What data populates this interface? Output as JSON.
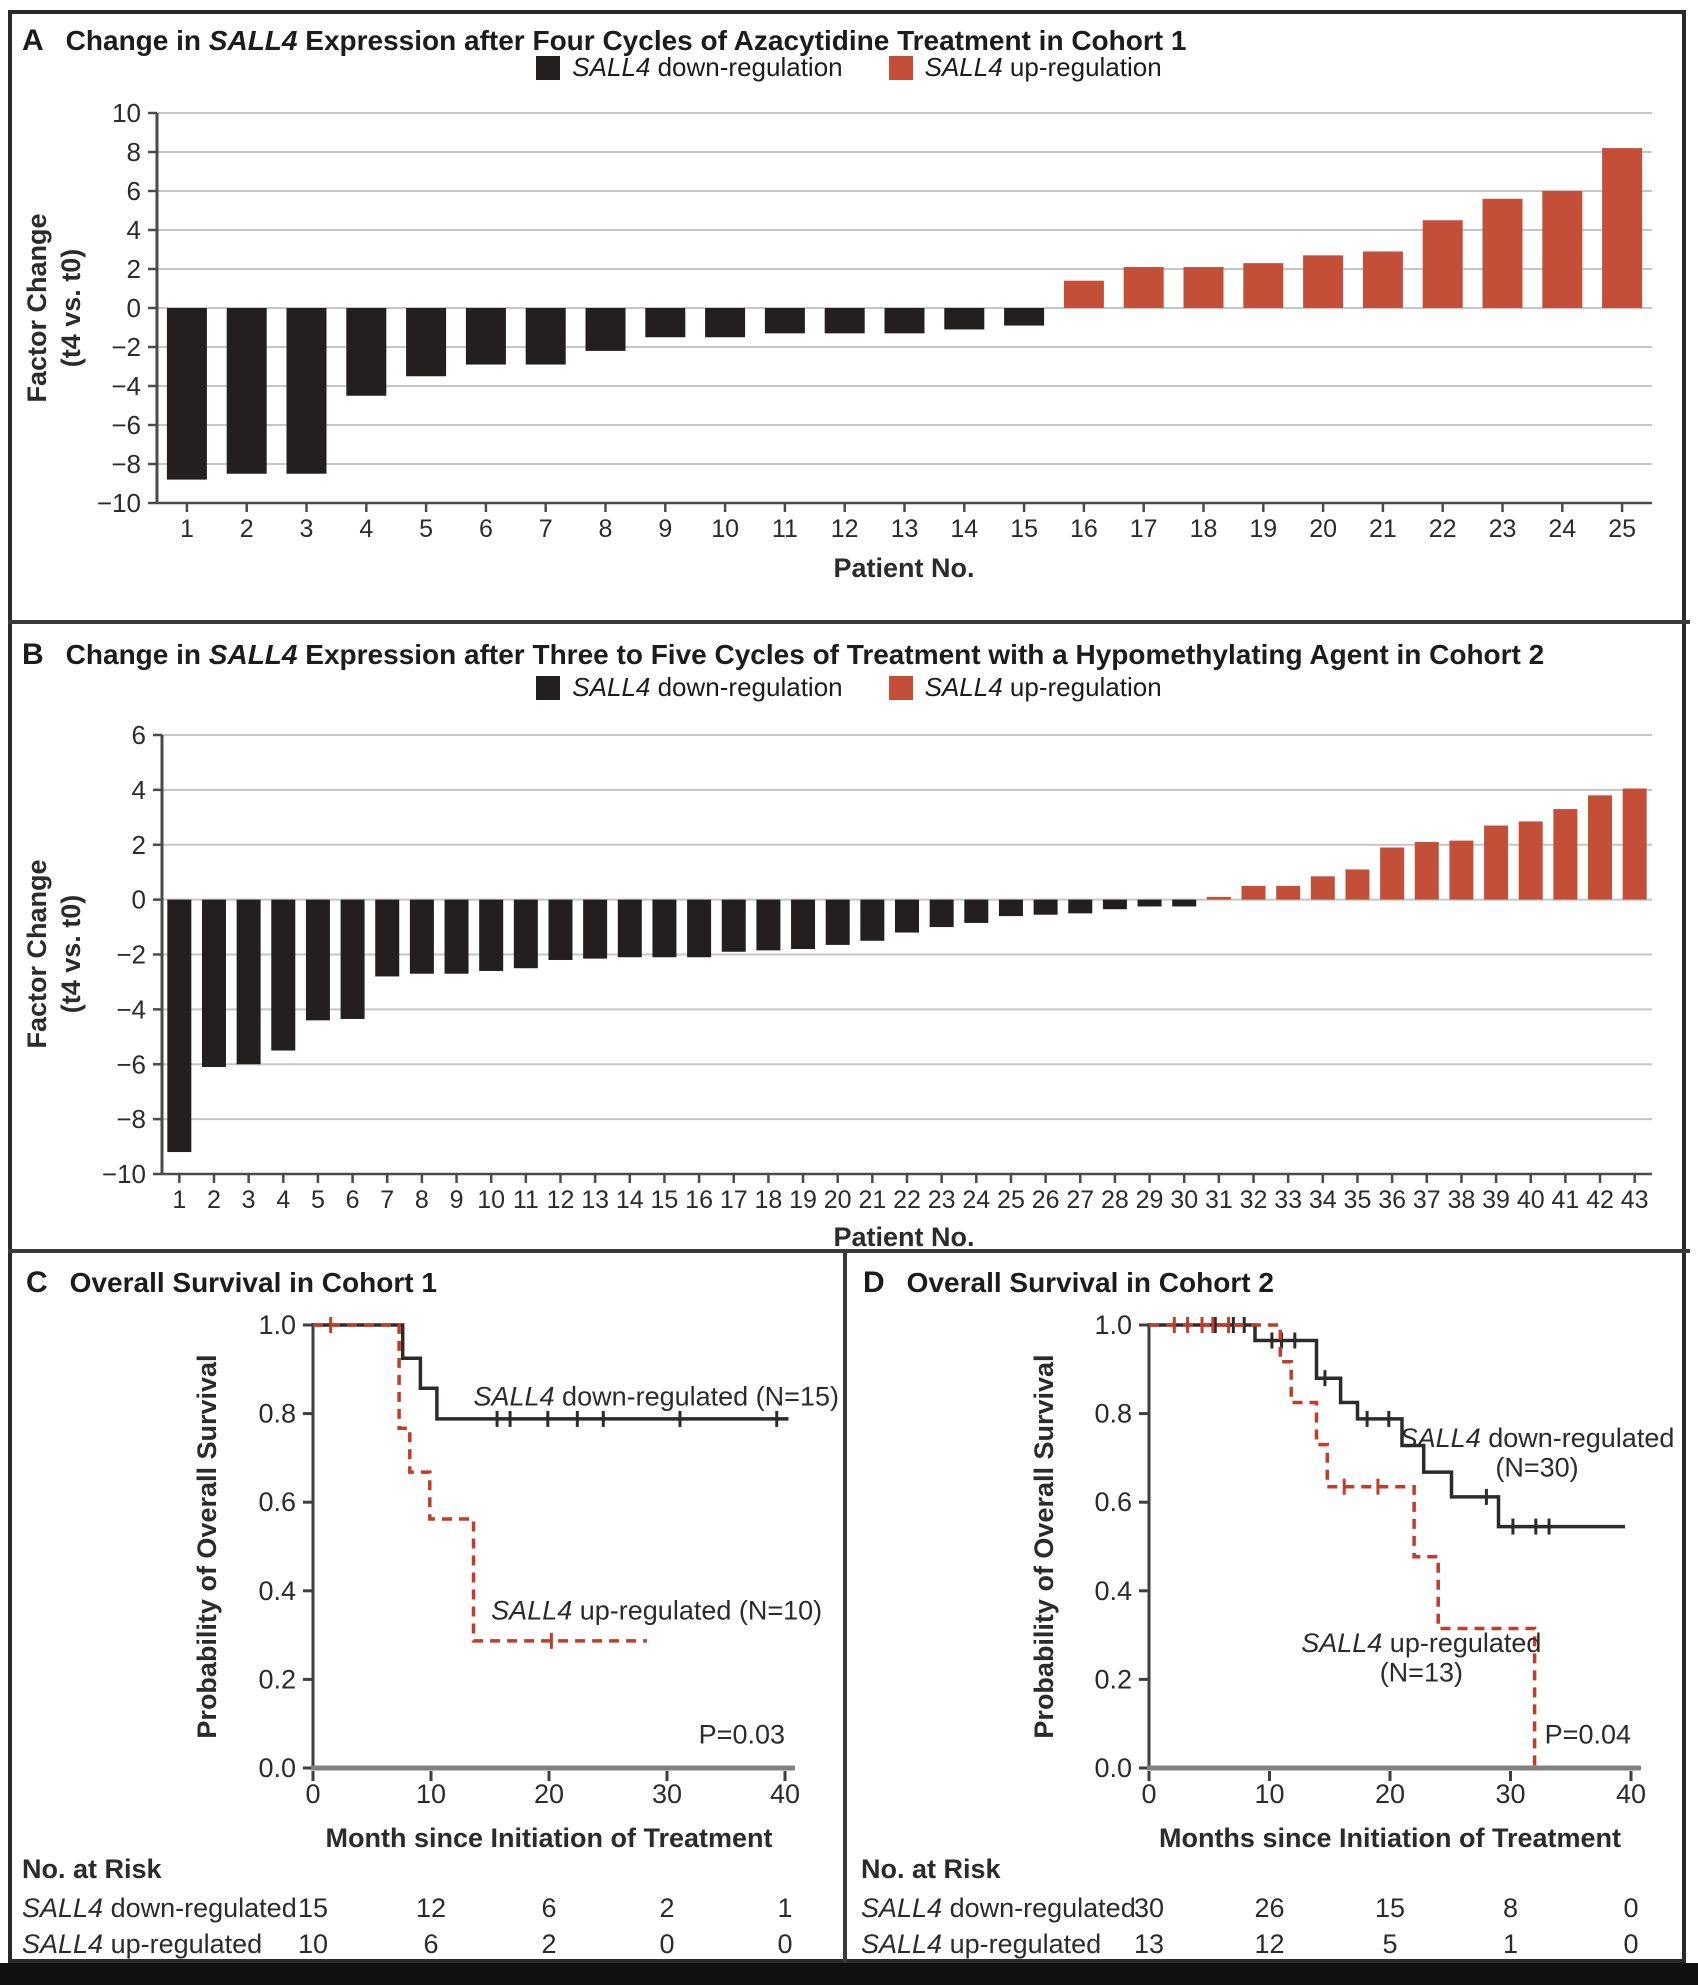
{
  "gene": "SALL4",
  "colors": {
    "down": "#231f1f",
    "up": "#c44f38",
    "black_line": "#2d2a2a",
    "red_line": "#c43b28",
    "grid": "#c6c6c6",
    "axis": "#4a4a4a",
    "km_axis": "#808080",
    "text": "#2b2b2b",
    "border": "#2a2a2a"
  },
  "legend": {
    "down": " down-regulation",
    "up": " up-regulation"
  },
  "panelA": {
    "label": "A",
    "title_pre": "Change in ",
    "title_post": " Expression after Four Cycles of Azacytidine Treatment in Cohort 1",
    "xlabel": "Patient No.",
    "ylabel1": "Factor Change",
    "ylabel2": "(t4 vs. t0)"
  },
  "panelB": {
    "label": "B",
    "title_pre": "Change in ",
    "title_post": " Expression after Three to Five Cycles of Treatment with a Hypomethylating Agent in Cohort 2",
    "xlabel": "Patient No.",
    "ylabel1": "Factor Change",
    "ylabel2": "(t4 vs. t0)"
  },
  "panelC": {
    "label": "C",
    "title": "Overall Survival in Cohort 1"
  },
  "panelD": {
    "label": "D",
    "title": "Overall Survival in Cohort 2"
  },
  "chart_data": [
    {
      "panel": "A",
      "type": "bar",
      "title": "Change in SALL4 Expression after Four Cycles of Azacytidine Treatment in Cohort 1",
      "legend": [
        "SALL4 down-regulation",
        "SALL4 up-regulation"
      ],
      "xlabel": "Patient No.",
      "ylabel": "Factor Change (t4 vs. t0)",
      "ylim": [
        -10,
        10
      ],
      "ytick_step": 2,
      "categories": [
        1,
        2,
        3,
        4,
        5,
        6,
        7,
        8,
        9,
        10,
        11,
        12,
        13,
        14,
        15,
        16,
        17,
        18,
        19,
        20,
        21,
        22,
        23,
        24,
        25
      ],
      "values": [
        -8.8,
        -8.5,
        -8.5,
        -4.5,
        -3.5,
        -2.9,
        -2.9,
        -2.2,
        -1.5,
        -1.5,
        -1.3,
        -1.3,
        -1.3,
        -1.1,
        -0.9,
        1.4,
        2.1,
        2.1,
        2.3,
        2.7,
        2.9,
        4.5,
        5.6,
        6.0,
        8.2
      ]
    },
    {
      "panel": "B",
      "type": "bar",
      "title": "Change in SALL4 Expression after Three to Five Cycles of Treatment with a Hypomethylating Agent in Cohort 2",
      "legend": [
        "SALL4 down-regulation",
        "SALL4 up-regulation"
      ],
      "xlabel": "Patient No.",
      "ylabel": "Factor Change (t4 vs. t0)",
      "ylim": [
        -10,
        6
      ],
      "ytick_step": 2,
      "categories": [
        1,
        2,
        3,
        4,
        5,
        6,
        7,
        8,
        9,
        10,
        11,
        12,
        13,
        14,
        15,
        16,
        17,
        18,
        19,
        20,
        21,
        22,
        23,
        24,
        25,
        26,
        27,
        28,
        29,
        30,
        31,
        32,
        33,
        34,
        35,
        36,
        37,
        38,
        39,
        40,
        41,
        42,
        43
      ],
      "values": [
        -9.2,
        -6.1,
        -6.0,
        -5.5,
        -4.4,
        -4.35,
        -2.8,
        -2.7,
        -2.7,
        -2.6,
        -2.5,
        -2.2,
        -2.15,
        -2.1,
        -2.1,
        -2.1,
        -1.9,
        -1.85,
        -1.8,
        -1.65,
        -1.5,
        -1.2,
        -1.0,
        -0.85,
        -0.6,
        -0.55,
        -0.5,
        -0.35,
        -0.25,
        -0.25,
        0.1,
        0.5,
        0.5,
        0.85,
        1.1,
        1.9,
        2.1,
        2.15,
        2.7,
        2.85,
        3.3,
        3.8,
        4.05
      ]
    },
    {
      "panel": "C",
      "type": "line",
      "title": "Overall Survival in Cohort 1",
      "xlabel": "Month since Initiation of Treatment",
      "ylabel": "Probability of Overall Survival",
      "xlim": [
        0,
        40
      ],
      "xticks": [
        0,
        10,
        20,
        30,
        40
      ],
      "ylim": [
        0.0,
        1.0
      ],
      "yticks": [
        0.0,
        0.2,
        0.4,
        0.6,
        0.8,
        1.0
      ],
      "p_value": "P=0.03",
      "p_pos": {
        "month": 40,
        "value": 0.055
      },
      "series": [
        {
          "name": "SALL4 down-regulated (N=15)",
          "style": "solid",
          "steps": [
            [
              0,
              1
            ],
            [
              7.6,
              1
            ],
            [
              7.6,
              0.925
            ],
            [
              9.1,
              0.925
            ],
            [
              9.1,
              0.857
            ],
            [
              10.5,
              0.857
            ],
            [
              10.5,
              0.788
            ],
            [
              40.3,
              0.788
            ]
          ],
          "censors": [
            [
              15.6,
              0.788
            ],
            [
              16.7,
              0.788
            ],
            [
              19.9,
              0.788
            ],
            [
              22.4,
              0.788
            ],
            [
              24.6,
              0.788
            ],
            [
              31.1,
              0.788
            ],
            [
              39.3,
              0.788
            ]
          ],
          "label": {
            "anchor": "start",
            "lines": [
              {
                "text": "SALL4 down-regulated (N=15)",
                "month": 13.6,
                "value": 0.818
              }
            ]
          }
        },
        {
          "name": "SALL4 up-regulated (N=10)",
          "style": "dashed",
          "steps": [
            [
              0,
              1
            ],
            [
              7.3,
              1
            ],
            [
              7.3,
              0.767
            ],
            [
              8.2,
              0.767
            ],
            [
              8.2,
              0.668
            ],
            [
              9.9,
              0.668
            ],
            [
              9.9,
              0.562
            ],
            [
              13.6,
              0.562
            ],
            [
              13.6,
              0.287
            ],
            [
              28.3,
              0.287
            ]
          ],
          "censors": [
            [
              1.5,
              1
            ],
            [
              20.2,
              0.287
            ]
          ],
          "label": {
            "anchor": "start",
            "lines": [
              {
                "text": "SALL4 up-regulated (N=10)",
                "month": 15.1,
                "value": 0.335
              }
            ]
          }
        }
      ],
      "risk_table": {
        "header": "No. at Risk",
        "timepoints": [
          0,
          10,
          20,
          30,
          40
        ],
        "rows": [
          {
            "label": "SALL4 down-regulated",
            "values": [
              "15",
              "12",
              "6",
              "2",
              "1"
            ]
          },
          {
            "label": "SALL4 up-regulated",
            "values": [
              "10",
              "6",
              "2",
              "0",
              "0"
            ]
          }
        ]
      }
    },
    {
      "panel": "D",
      "type": "line",
      "title": "Overall Survival in Cohort 2",
      "xlabel": "Months since Initiation of Treatment",
      "ylabel": "Probability of Overall Survival",
      "xlim": [
        0,
        40
      ],
      "xticks": [
        0,
        10,
        20,
        30,
        40
      ],
      "ylim": [
        0.0,
        1.0
      ],
      "yticks": [
        0.0,
        0.2,
        0.4,
        0.6,
        0.8,
        1.0
      ],
      "p_value": "P=0.04",
      "p_pos": {
        "month": 40,
        "value": 0.055
      },
      "series": [
        {
          "name": "SALL4 down-regulated (N=30)",
          "style": "solid",
          "steps": [
            [
              0,
              1
            ],
            [
              8.8,
              1
            ],
            [
              8.8,
              0.965
            ],
            [
              13.9,
              0.965
            ],
            [
              13.9,
              0.88
            ],
            [
              15.9,
              0.88
            ],
            [
              15.9,
              0.825
            ],
            [
              17.3,
              0.825
            ],
            [
              17.3,
              0.788
            ],
            [
              21,
              0.788
            ],
            [
              21,
              0.728
            ],
            [
              22.8,
              0.728
            ],
            [
              22.8,
              0.668
            ],
            [
              25.1,
              0.668
            ],
            [
              25.1,
              0.612
            ],
            [
              29,
              0.612
            ],
            [
              29,
              0.545
            ],
            [
              39.5,
              0.545
            ]
          ],
          "censors": [
            [
              5.5,
              1
            ],
            [
              7,
              1
            ],
            [
              7.9,
              1
            ],
            [
              10.2,
              0.965
            ],
            [
              11,
              0.965
            ],
            [
              12.1,
              0.965
            ],
            [
              14.6,
              0.88
            ],
            [
              18.1,
              0.788
            ],
            [
              19.9,
              0.788
            ],
            [
              28,
              0.612
            ],
            [
              30.2,
              0.545
            ],
            [
              32.1,
              0.545
            ],
            [
              33.2,
              0.545
            ]
          ],
          "label": {
            "anchor": "middle",
            "lines": [
              {
                "text": "SALL4 down-regulated",
                "month": 32.2,
                "value": 0.725
              },
              {
                "text": "(N=30)",
                "month": 32.2,
                "value": 0.658
              }
            ]
          }
        },
        {
          "name": "SALL4 up-regulated (N=13)",
          "style": "dashed",
          "steps": [
            [
              0,
              1
            ],
            [
              10.9,
              1
            ],
            [
              10.9,
              0.917
            ],
            [
              11.8,
              0.917
            ],
            [
              11.8,
              0.825
            ],
            [
              13.9,
              0.825
            ],
            [
              13.9,
              0.73
            ],
            [
              14.8,
              0.73
            ],
            [
              14.8,
              0.635
            ],
            [
              22,
              0.635
            ],
            [
              22,
              0.477
            ],
            [
              24,
              0.477
            ],
            [
              24,
              0.315
            ],
            [
              32,
              0.315
            ],
            [
              32,
              0
            ]
          ],
          "censors": [
            [
              2.1,
              1
            ],
            [
              3.2,
              1
            ],
            [
              4.4,
              1
            ],
            [
              5.3,
              1
            ],
            [
              6.6,
              1
            ],
            [
              16.2,
              0.635
            ],
            [
              19,
              0.635
            ]
          ],
          "label": {
            "anchor": "middle",
            "lines": [
              {
                "text": "SALL4 up-regulated",
                "month": 22.6,
                "value": 0.262
              },
              {
                "text": "(N=13)",
                "month": 22.6,
                "value": 0.195
              }
            ]
          }
        }
      ],
      "risk_table": {
        "header": "No. at Risk",
        "timepoints": [
          0,
          10,
          20,
          30,
          40
        ],
        "rows": [
          {
            "label": "SALL4 down-regulated",
            "values": [
              "30",
              "26",
              "15",
              "8",
              "0"
            ]
          },
          {
            "label": "SALL4 up-regulated",
            "values": [
              "13",
              "12",
              "5",
              "1",
              "0"
            ]
          }
        ]
      }
    }
  ]
}
